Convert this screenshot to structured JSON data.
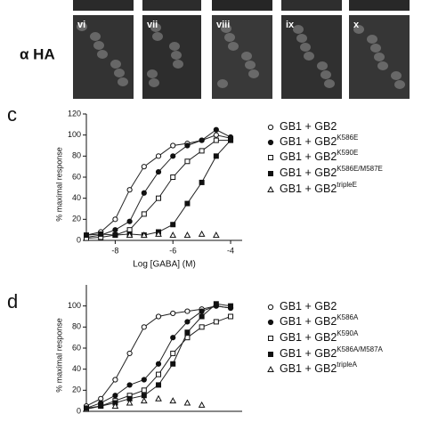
{
  "micrographs": {
    "label": "α HA",
    "panels": [
      "vi",
      "vii",
      "viii",
      "ix",
      "x"
    ]
  },
  "chart_data": [
    {
      "type": "line",
      "panel_label": "c",
      "x_label": "Log [GABA] (M)",
      "y_label": "% maximal response",
      "xlim": [
        -9,
        -3.6
      ],
      "xticks": [
        -8,
        -6,
        -4
      ],
      "ylim": [
        0,
        120
      ],
      "yticks": [
        0,
        20,
        40,
        60,
        80,
        100,
        120
      ],
      "x": [
        -9,
        -8.5,
        -8,
        -7.5,
        -7,
        -6.5,
        -6,
        -5.5,
        -5,
        -4.5,
        -4
      ],
      "series": [
        {
          "name": "GB1 + GB2",
          "marker": "circle-open",
          "color": "#222",
          "values": [
            5,
            8,
            20,
            48,
            70,
            80,
            90,
            92,
            95,
            100,
            97
          ]
        },
        {
          "name": "GB1 + GB2",
          "name_superscript": "K586E",
          "marker": "circle-filled",
          "color": "#222",
          "values": [
            3,
            5,
            10,
            18,
            45,
            65,
            80,
            90,
            95,
            105,
            98
          ]
        },
        {
          "name": "GB1 + GB2",
          "name_superscript": "K590E",
          "marker": "square-open",
          "color": "#222",
          "values": [
            2,
            3,
            5,
            10,
            25,
            40,
            60,
            75,
            85,
            95,
            95
          ]
        },
        {
          "name": "GB1 + GB2",
          "name_superscript": "K586E/M587E",
          "marker": "square-filled",
          "color": "#222",
          "values": [
            5,
            6,
            5,
            6,
            5,
            8,
            15,
            35,
            55,
            80,
            95
          ]
        },
        {
          "name": "GB1 + GB2",
          "name_superscript": "tripleE",
          "marker": "triangle-open",
          "color": "#222",
          "values": [
            null,
            null,
            null,
            5,
            5,
            6,
            5,
            5,
            6,
            5,
            null
          ]
        }
      ]
    },
    {
      "type": "line",
      "panel_label": "d",
      "y_label": "% maximal response",
      "xlim": [
        -9,
        -3.6
      ],
      "ylim": [
        0,
        120
      ],
      "yticks": [
        0,
        20,
        40,
        60,
        80,
        100
      ],
      "x": [
        -9,
        -8.5,
        -8,
        -7.5,
        -7,
        -6.5,
        -6,
        -5.5,
        -5,
        -4.5,
        -4
      ],
      "series": [
        {
          "name": "GB1 + GB2",
          "marker": "circle-open",
          "color": "#222",
          "values": [
            5,
            12,
            30,
            55,
            80,
            90,
            93,
            95,
            97,
            100,
            98
          ]
        },
        {
          "name": "GB1 + GB2",
          "name_superscript": "K586A",
          "marker": "circle-filled",
          "color": "#222",
          "values": [
            3,
            8,
            15,
            25,
            30,
            45,
            70,
            85,
            95,
            100,
            98
          ]
        },
        {
          "name": "GB1 + GB2",
          "name_superscript": "K590A",
          "marker": "square-open",
          "color": "#222",
          "values": [
            2,
            5,
            10,
            15,
            20,
            35,
            55,
            70,
            80,
            85,
            90
          ]
        },
        {
          "name": "GB1 + GB2",
          "name_superscript": "K586A/M587A",
          "marker": "square-filled",
          "color": "#222",
          "values": [
            3,
            5,
            8,
            12,
            15,
            25,
            45,
            75,
            90,
            102,
            100
          ]
        },
        {
          "name": "GB1 + GB2",
          "name_superscript": "tripleA",
          "marker": "triangle-open",
          "color": "#222",
          "values": [
            null,
            null,
            5,
            8,
            10,
            12,
            10,
            8,
            6,
            null,
            null
          ]
        }
      ]
    }
  ]
}
